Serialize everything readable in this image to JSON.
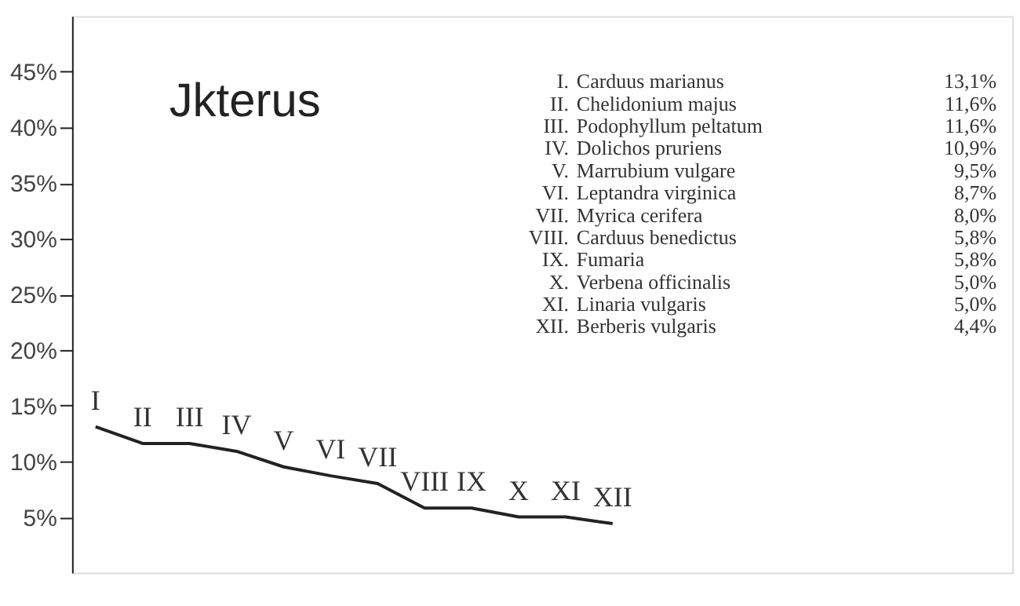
{
  "chart_data": {
    "type": "line",
    "title": "Jkterus",
    "categories": [
      "I",
      "II",
      "III",
      "IV",
      "V",
      "VI",
      "VII",
      "VIII",
      "IX",
      "X",
      "XI",
      "XII"
    ],
    "series": [
      {
        "color": "#222222",
        "values": [
          13.1,
          11.6,
          11.6,
          10.9,
          9.5,
          8.7,
          8.0,
          5.8,
          5.8,
          5.0,
          5.0,
          4.4
        ]
      }
    ],
    "ylim": [
      0,
      50
    ],
    "yticks": [
      {
        "value": 5,
        "label": "5%"
      },
      {
        "value": 10,
        "label": "10%"
      },
      {
        "value": 15,
        "label": "15%"
      },
      {
        "value": 20,
        "label": "20%"
      },
      {
        "value": 25,
        "label": "25%"
      },
      {
        "value": 30,
        "label": "30%"
      },
      {
        "value": 35,
        "label": "35%"
      },
      {
        "value": 40,
        "label": "40%"
      },
      {
        "value": 45,
        "label": "45%"
      }
    ],
    "tick_labels": "y",
    "grid": false,
    "marker": "none",
    "line_style": "solid",
    "annotations": [
      "I. Carduus marianus 13,1%",
      "II. Chelidonium majus 11,6%",
      "III. Podophyllum peltatum 11,6%",
      "IV. Dolichos pruriens 10,9%",
      "V. Marrubium vulgare 9,5%",
      "VI. Leptandra virginica 8,7%",
      "VII. Myrica cerifera 8,0%",
      "VIII. Carduus benedictus 5,8%",
      "IX. Fumaria 5,8%",
      "X. Verbena officinalis 5,0%",
      "XI. Linaria vulgaris 5,0%",
      "XII. Berberis vulgaris 4,4%"
    ]
  }
}
